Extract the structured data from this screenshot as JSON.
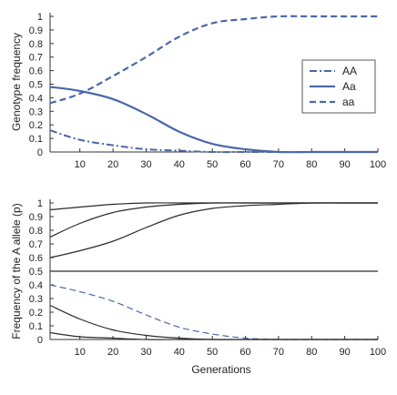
{
  "colors": {
    "accent": "#4a68a8",
    "dark": "#2b2b2b",
    "axis": "#333333"
  },
  "chart_data": [
    {
      "type": "line",
      "title": "",
      "ylabel": "Genotype frequency",
      "xlabel": "",
      "xlim": [
        1,
        100
      ],
      "ylim": [
        0,
        1
      ],
      "xticks": [
        10,
        20,
        30,
        40,
        50,
        60,
        70,
        80,
        90,
        100
      ],
      "yticks": [
        0,
        0.1,
        0.2,
        0.3,
        0.4,
        0.5,
        0.6,
        0.7,
        0.8,
        0.9,
        1
      ],
      "legend_position": "top-right",
      "x": [
        1,
        10,
        20,
        30,
        40,
        50,
        60,
        70,
        80,
        90,
        100
      ],
      "series": [
        {
          "name": "AA",
          "style": "dash-dot",
          "color": "#4a68a8",
          "width": 2,
          "values": [
            0.16,
            0.09,
            0.05,
            0.02,
            0.01,
            0.0,
            0.0,
            0.0,
            0.0,
            0.0,
            0.0
          ]
        },
        {
          "name": "Aa",
          "style": "solid",
          "color": "#4a68a8",
          "width": 2.2,
          "values": [
            0.48,
            0.45,
            0.39,
            0.28,
            0.15,
            0.06,
            0.02,
            0.0,
            0.0,
            0.0,
            0.0
          ]
        },
        {
          "name": "aa",
          "style": "dash",
          "color": "#4a68a8",
          "width": 2.2,
          "values": [
            0.36,
            0.43,
            0.56,
            0.7,
            0.85,
            0.95,
            0.98,
            1.0,
            1.0,
            1.0,
            1.0
          ]
        }
      ]
    },
    {
      "type": "line",
      "title": "",
      "ylabel": "Frequency of the A allele (p)",
      "xlabel": "Generations",
      "xlim": [
        1,
        100
      ],
      "ylim": [
        0,
        1
      ],
      "xticks": [
        10,
        20,
        30,
        40,
        50,
        60,
        70,
        80,
        90,
        100
      ],
      "yticks": [
        0,
        0.1,
        0.2,
        0.3,
        0.4,
        0.5,
        0.6,
        0.7,
        0.8,
        0.9,
        1
      ],
      "x": [
        1,
        10,
        20,
        30,
        40,
        50,
        60,
        70,
        80,
        90,
        100
      ],
      "series": [
        {
          "style": "solid",
          "color": "#2b2b2b",
          "width": 1.2,
          "values": [
            0.95,
            0.97,
            0.99,
            1.0,
            1.0,
            1.0,
            1.0,
            1.0,
            1.0,
            1.0,
            1.0
          ]
        },
        {
          "style": "solid",
          "color": "#2b2b2b",
          "width": 1.2,
          "values": [
            0.75,
            0.85,
            0.93,
            0.97,
            0.99,
            1.0,
            1.0,
            1.0,
            1.0,
            1.0,
            1.0
          ]
        },
        {
          "style": "solid",
          "color": "#2b2b2b",
          "width": 1.2,
          "values": [
            0.6,
            0.65,
            0.72,
            0.82,
            0.91,
            0.96,
            0.98,
            0.99,
            1.0,
            1.0,
            1.0
          ]
        },
        {
          "style": "solid",
          "color": "#2b2b2b",
          "width": 1.2,
          "values": [
            0.5,
            0.5,
            0.5,
            0.5,
            0.5,
            0.5,
            0.5,
            0.5,
            0.5,
            0.5,
            0.5
          ]
        },
        {
          "style": "dash",
          "color": "#4a68a8",
          "width": 1.2,
          "values": [
            0.4,
            0.35,
            0.28,
            0.18,
            0.09,
            0.04,
            0.01,
            0.0,
            0.0,
            0.0,
            0.0
          ]
        },
        {
          "style": "solid",
          "color": "#2b2b2b",
          "width": 1.2,
          "values": [
            0.25,
            0.15,
            0.07,
            0.03,
            0.01,
            0.0,
            0.0,
            0.0,
            0.0,
            0.0,
            0.0
          ]
        },
        {
          "style": "solid",
          "color": "#2b2b2b",
          "width": 1.2,
          "values": [
            0.05,
            0.02,
            0.01,
            0.0,
            0.0,
            0.0,
            0.0,
            0.0,
            0.0,
            0.0,
            0.0
          ]
        }
      ]
    }
  ]
}
